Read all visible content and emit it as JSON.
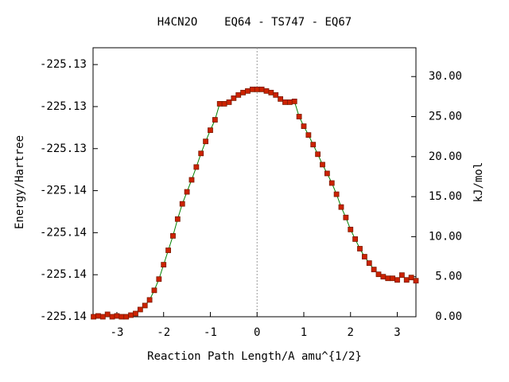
{
  "chart_data": {
    "type": "line",
    "title": "H4CN2O    EQ64 - TS747 - EQ67",
    "xlabel": "Reaction Path Length/A amu^{1/2}",
    "ylabel": "Energy/Hartree",
    "y2label": "kJ/mol",
    "x": [
      -3.5,
      -3.4,
      -3.3,
      -3.2,
      -3.1,
      -3.0,
      -2.9,
      -2.8,
      -2.7,
      -2.6,
      -2.5,
      -2.4,
      -2.3,
      -2.2,
      -2.1,
      -2.0,
      -1.9,
      -1.8,
      -1.7,
      -1.6,
      -1.5,
      -1.4,
      -1.3,
      -1.2,
      -1.1,
      -1.0,
      -0.9,
      -0.8,
      -0.7,
      -0.6,
      -0.5,
      -0.4,
      -0.3,
      -0.2,
      -0.1,
      0.0,
      0.1,
      0.2,
      0.3,
      0.4,
      0.5,
      0.6,
      0.7,
      0.8,
      0.9,
      1.0,
      1.1,
      1.2,
      1.3,
      1.4,
      1.5,
      1.6,
      1.7,
      1.8,
      1.9,
      2.0,
      2.1,
      2.2,
      2.3,
      2.4,
      2.5,
      2.6,
      2.7,
      2.8,
      2.9,
      3.0,
      3.1,
      3.2,
      3.3,
      3.4
    ],
    "series": [
      {
        "name": "kJ/mol",
        "axis": "y2",
        "color": "#008000",
        "marker_color": "#cc2200",
        "values": [
          0.0,
          0.1,
          0.0,
          0.3,
          0.0,
          0.1,
          0.0,
          0.0,
          0.2,
          0.4,
          0.9,
          1.4,
          2.1,
          3.3,
          4.7,
          6.5,
          8.3,
          10.1,
          12.2,
          14.1,
          15.6,
          17.1,
          18.7,
          20.4,
          21.9,
          23.3,
          24.6,
          26.6,
          26.6,
          26.8,
          27.3,
          27.7,
          28.0,
          28.2,
          28.4,
          28.4,
          28.4,
          28.2,
          28.0,
          27.7,
          27.2,
          26.8,
          26.8,
          26.9,
          25.0,
          23.8,
          22.7,
          21.5,
          20.3,
          19.0,
          17.9,
          16.7,
          15.3,
          13.7,
          12.4,
          10.9,
          9.7,
          8.5,
          7.5,
          6.7,
          5.9,
          5.3,
          5.0,
          4.8,
          4.8,
          4.6,
          5.2,
          4.6,
          4.9,
          4.5
        ]
      }
    ],
    "xlim": [
      -3.51,
      3.4
    ],
    "xticks": [
      -3,
      -2,
      -1,
      0,
      1,
      2,
      3
    ],
    "ylim": [
      -225.142,
      -225.1292
    ],
    "yticks": [
      {
        "value": -225.142,
        "label": "-225.14"
      },
      {
        "value": -225.14,
        "label": "-225.14"
      },
      {
        "value": -225.138,
        "label": "-225.14"
      },
      {
        "value": -225.136,
        "label": "-225.14"
      },
      {
        "value": -225.134,
        "label": "-225.13"
      },
      {
        "value": -225.132,
        "label": "-225.13"
      },
      {
        "value": -225.13,
        "label": "-225.13"
      }
    ],
    "y2lim": [
      0,
      33.6
    ],
    "y2ticks": [
      {
        "value": 0,
        "label": "0.00"
      },
      {
        "value": 5,
        "label": "5.00"
      },
      {
        "value": 10,
        "label": "10.00"
      },
      {
        "value": 15,
        "label": "15.00"
      },
      {
        "value": 20,
        "label": "20.00"
      },
      {
        "value": 25,
        "label": "25.00"
      },
      {
        "value": 30,
        "label": "30.00"
      }
    ]
  }
}
